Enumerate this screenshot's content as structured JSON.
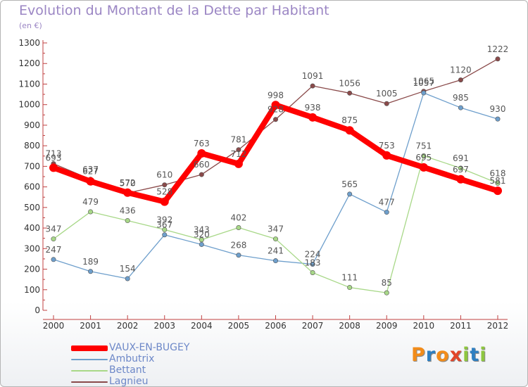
{
  "chart_data": {
    "type": "line",
    "title": "Evolution du Montant de la Dette par Habitant",
    "subtitle": "(en €)",
    "x": [
      "2000",
      "2001",
      "2002",
      "2003",
      "2004",
      "2005",
      "2006",
      "2007",
      "2008",
      "2009",
      "2010",
      "2011",
      "2012"
    ],
    "ylim": [
      0,
      1300
    ],
    "yticks": [
      0,
      100,
      200,
      300,
      400,
      500,
      600,
      700,
      800,
      900,
      1000,
      1100,
      1200,
      1300
    ],
    "grid": false,
    "legend_position": "bottom-left",
    "series": [
      {
        "name": "VAUX-EN-BUGEY",
        "color": "#ff0000",
        "values": [
          693,
          627,
          572,
          528,
          763,
          712,
          998,
          938,
          875,
          753,
          695,
          637,
          581
        ]
      },
      {
        "name": "Ambutrix",
        "color": "#6e9fcc",
        "values": [
          247,
          189,
          154,
          367,
          320,
          268,
          241,
          224,
          565,
          477,
          1057,
          985,
          930
        ]
      },
      {
        "name": "Bettant",
        "color": "#a8d888",
        "values": [
          347,
          479,
          436,
          392,
          343,
          402,
          347,
          183,
          111,
          85,
          751,
          691,
          618
        ]
      },
      {
        "name": "Lagnieu",
        "color": "#8a4a4a",
        "values": [
          713,
          637,
          570,
          610,
          660,
          781,
          928,
          1091,
          1056,
          1005,
          1065,
          1120,
          1222
        ]
      }
    ]
  },
  "brand": {
    "letters": [
      "P",
      "r",
      "o",
      "x",
      "i",
      "t",
      "i"
    ],
    "colors": [
      "#f28c1a",
      "#2e7fc1",
      "#f28c1a",
      "#e2452a",
      "#8dc63f",
      "#2e7fc1",
      "#8dc63f"
    ]
  }
}
